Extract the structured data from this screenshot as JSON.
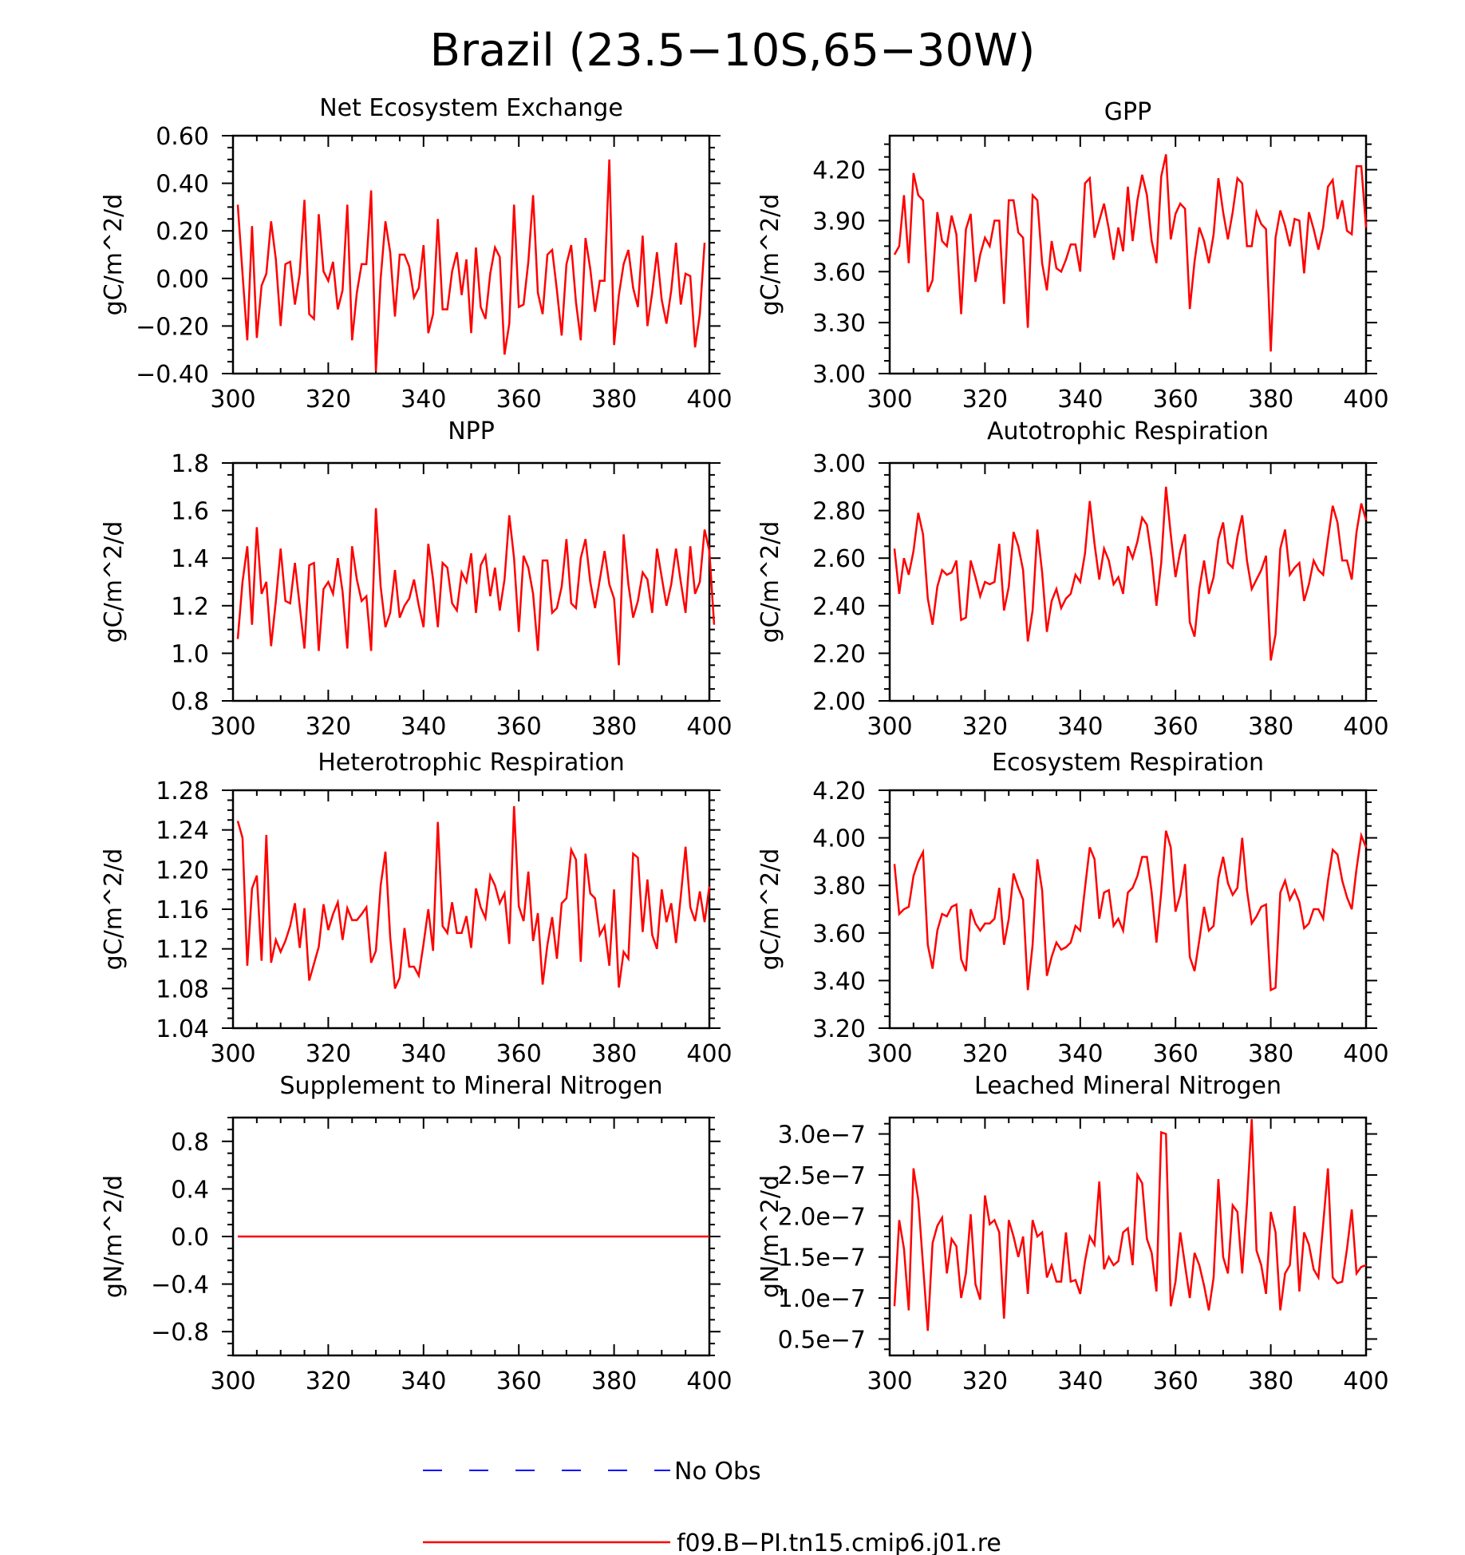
{
  "title": "Brazil (23.5−10S,65−30W)",
  "line_color": "#ff0000",
  "obs_color": "#0000ff",
  "legend": {
    "obs_label": "No Obs",
    "model_label": "f09.B−PI.tn15.cmip6.j01.re"
  },
  "x_ticks": [
    "300",
    "320",
    "340",
    "360",
    "380",
    "400"
  ],
  "chart_data": [
    {
      "type": "line",
      "title": "Net Ecosystem Exchange",
      "ylabel": "gC/m^2/d",
      "xlim": [
        300,
        400
      ],
      "ylim": [
        -0.4,
        0.6
      ],
      "yticks": [
        -0.4,
        -0.2,
        0.0,
        0.2,
        0.4,
        0.6
      ],
      "ytick_labels": [
        "−0.40",
        "−0.20",
        "0.00",
        "0.20",
        "0.40",
        "0.60"
      ],
      "x_start": 301,
      "series": [
        {
          "values": [
            0.31,
            0.02,
            -0.26,
            0.22,
            -0.25,
            -0.03,
            0.02,
            0.24,
            0.08,
            -0.2,
            0.06,
            0.07,
            -0.11,
            0.02,
            0.33,
            -0.15,
            -0.17,
            0.27,
            0.03,
            -0.01,
            0.07,
            -0.13,
            -0.05,
            0.31,
            -0.26,
            -0.06,
            0.06,
            0.06,
            0.37,
            -0.39,
            0.0,
            0.24,
            0.11,
            -0.16,
            0.1,
            0.1,
            0.05,
            -0.08,
            -0.04,
            0.14,
            -0.23,
            -0.15,
            0.25,
            -0.13,
            -0.13,
            0.03,
            0.11,
            -0.07,
            0.08,
            -0.23,
            0.13,
            -0.12,
            -0.17,
            0.02,
            0.13,
            0.09,
            -0.32,
            -0.19,
            0.31,
            -0.12,
            -0.11,
            0.07,
            0.35,
            -0.06,
            -0.15,
            0.1,
            0.12,
            -0.05,
            -0.24,
            0.06,
            0.14,
            -0.1,
            -0.26,
            0.17,
            0.04,
            -0.14,
            -0.01,
            -0.01,
            0.5,
            -0.28,
            -0.07,
            0.06,
            0.12,
            -0.04,
            -0.12,
            0.18,
            -0.2,
            -0.06,
            0.11,
            -0.09,
            -0.19,
            -0.05,
            0.15,
            -0.11,
            0.02,
            0.01,
            -0.29,
            -0.15,
            0.15
          ]
        }
      ]
    },
    {
      "type": "line",
      "title": "GPP",
      "ylabel": "gC/m^2/d",
      "xlim": [
        300,
        400
      ],
      "ylim": [
        3.0,
        4.4
      ],
      "yticks": [
        3.0,
        3.3,
        3.6,
        3.9,
        4.2
      ],
      "ytick_labels": [
        "3.00",
        "3.30",
        "3.60",
        "3.90",
        "4.20"
      ],
      "x_start": 301,
      "series": [
        {
          "values": [
            3.7,
            3.75,
            4.05,
            3.65,
            4.18,
            4.05,
            4.02,
            3.48,
            3.55,
            3.95,
            3.78,
            3.75,
            3.93,
            3.82,
            3.35,
            3.85,
            3.94,
            3.54,
            3.7,
            3.8,
            3.75,
            3.9,
            3.9,
            3.41,
            4.02,
            4.02,
            3.83,
            3.8,
            3.27,
            4.05,
            4.02,
            3.65,
            3.49,
            3.78,
            3.62,
            3.6,
            3.67,
            3.76,
            3.76,
            3.6,
            4.12,
            4.15,
            3.8,
            3.9,
            4.0,
            3.85,
            3.67,
            3.86,
            3.72,
            4.1,
            3.78,
            4.02,
            4.17,
            4.05,
            3.78,
            3.65,
            4.16,
            4.29,
            3.79,
            3.94,
            4.0,
            3.97,
            3.38,
            3.66,
            3.86,
            3.78,
            3.65,
            3.82,
            4.15,
            3.95,
            3.79,
            3.95,
            4.15,
            4.12,
            3.75,
            3.75,
            3.95,
            3.88,
            3.85,
            3.13,
            3.8,
            3.96,
            3.87,
            3.75,
            3.91,
            3.9,
            3.59,
            3.95,
            3.85,
            3.73,
            3.86,
            4.1,
            4.14,
            3.91,
            4.02,
            3.84,
            3.82,
            4.22,
            4.22,
            3.86
          ]
        }
      ]
    },
    {
      "type": "line",
      "title": "NPP",
      "ylabel": "gC/m^2/d",
      "xlim": [
        300,
        400
      ],
      "ylim": [
        0.8,
        1.8
      ],
      "yticks": [
        0.8,
        1.0,
        1.2,
        1.4,
        1.6,
        1.8
      ],
      "ytick_labels": [
        "0.8",
        "1.0",
        "1.2",
        "1.4",
        "1.6",
        "1.8"
      ],
      "x_start": 301,
      "series": [
        {
          "values": [
            1.06,
            1.3,
            1.45,
            1.12,
            1.53,
            1.25,
            1.3,
            1.03,
            1.22,
            1.44,
            1.22,
            1.21,
            1.38,
            1.2,
            1.02,
            1.37,
            1.38,
            1.01,
            1.27,
            1.3,
            1.25,
            1.4,
            1.26,
            1.02,
            1.45,
            1.31,
            1.22,
            1.24,
            1.01,
            1.61,
            1.28,
            1.11,
            1.17,
            1.35,
            1.15,
            1.2,
            1.23,
            1.31,
            1.2,
            1.11,
            1.46,
            1.31,
            1.11,
            1.38,
            1.36,
            1.21,
            1.18,
            1.34,
            1.3,
            1.42,
            1.17,
            1.37,
            1.41,
            1.24,
            1.36,
            1.18,
            1.31,
            1.58,
            1.4,
            1.09,
            1.41,
            1.36,
            1.25,
            1.01,
            1.39,
            1.39,
            1.17,
            1.19,
            1.28,
            1.48,
            1.21,
            1.19,
            1.4,
            1.48,
            1.3,
            1.19,
            1.31,
            1.43,
            1.29,
            1.23,
            0.95,
            1.5,
            1.29,
            1.15,
            1.22,
            1.34,
            1.31,
            1.17,
            1.44,
            1.32,
            1.2,
            1.29,
            1.44,
            1.3,
            1.17,
            1.45,
            1.25,
            1.3,
            1.52,
            1.43,
            1.12
          ]
        }
      ]
    },
    {
      "type": "line",
      "title": "Autotrophic Respiration",
      "ylabel": "gC/m^2/d",
      "xlim": [
        300,
        400
      ],
      "ylim": [
        2.0,
        3.0
      ],
      "yticks": [
        2.0,
        2.2,
        2.4,
        2.6,
        2.8,
        3.0
      ],
      "ytick_labels": [
        "2.00",
        "2.20",
        "2.40",
        "2.60",
        "2.80",
        "3.00"
      ],
      "x_start": 301,
      "series": [
        {
          "values": [
            2.64,
            2.45,
            2.6,
            2.53,
            2.63,
            2.79,
            2.7,
            2.43,
            2.32,
            2.48,
            2.55,
            2.53,
            2.54,
            2.59,
            2.34,
            2.35,
            2.59,
            2.52,
            2.44,
            2.5,
            2.49,
            2.5,
            2.66,
            2.38,
            2.48,
            2.71,
            2.65,
            2.55,
            2.25,
            2.38,
            2.72,
            2.54,
            2.29,
            2.42,
            2.47,
            2.39,
            2.43,
            2.45,
            2.53,
            2.5,
            2.62,
            2.84,
            2.66,
            2.51,
            2.64,
            2.59,
            2.49,
            2.52,
            2.45,
            2.65,
            2.6,
            2.67,
            2.77,
            2.74,
            2.6,
            2.4,
            2.58,
            2.9,
            2.7,
            2.52,
            2.63,
            2.7,
            2.33,
            2.27,
            2.47,
            2.59,
            2.45,
            2.52,
            2.68,
            2.75,
            2.58,
            2.56,
            2.69,
            2.78,
            2.59,
            2.47,
            2.51,
            2.55,
            2.61,
            2.17,
            2.28,
            2.64,
            2.72,
            2.53,
            2.56,
            2.58,
            2.42,
            2.49,
            2.59,
            2.55,
            2.53,
            2.68,
            2.82,
            2.75,
            2.59,
            2.59,
            2.51,
            2.71,
            2.83,
            2.76
          ]
        }
      ]
    },
    {
      "type": "line",
      "title": "Heterotrophic Respiration",
      "ylabel": "gC/m^2/d",
      "xlim": [
        300,
        400
      ],
      "ylim": [
        1.04,
        1.28
      ],
      "yticks": [
        1.04,
        1.08,
        1.12,
        1.16,
        1.2,
        1.24,
        1.28
      ],
      "ytick_labels": [
        "1.04",
        "1.08",
        "1.12",
        "1.16",
        "1.20",
        "1.24",
        "1.28"
      ],
      "x_start": 301,
      "series": [
        {
          "values": [
            1.249,
            1.232,
            1.103,
            1.181,
            1.194,
            1.108,
            1.235,
            1.106,
            1.129,
            1.117,
            1.128,
            1.143,
            1.166,
            1.121,
            1.161,
            1.088,
            1.105,
            1.122,
            1.165,
            1.139,
            1.155,
            1.167,
            1.129,
            1.161,
            1.149,
            1.149,
            1.155,
            1.162,
            1.106,
            1.118,
            1.184,
            1.218,
            1.132,
            1.08,
            1.091,
            1.141,
            1.102,
            1.102,
            1.093,
            1.125,
            1.16,
            1.118,
            1.248,
            1.143,
            1.136,
            1.167,
            1.136,
            1.136,
            1.153,
            1.121,
            1.181,
            1.162,
            1.151,
            1.194,
            1.184,
            1.166,
            1.176,
            1.125,
            1.264,
            1.163,
            1.148,
            1.198,
            1.128,
            1.156,
            1.084,
            1.124,
            1.152,
            1.11,
            1.166,
            1.171,
            1.22,
            1.21,
            1.107,
            1.216,
            1.176,
            1.171,
            1.134,
            1.143,
            1.103,
            1.18,
            1.081,
            1.117,
            1.11,
            1.216,
            1.212,
            1.137,
            1.19,
            1.134,
            1.12,
            1.18,
            1.147,
            1.166,
            1.126,
            1.173,
            1.223,
            1.162,
            1.148,
            1.178,
            1.147,
            1.183
          ]
        }
      ]
    },
    {
      "type": "line",
      "title": "Ecosystem Respiration",
      "ylabel": "gC/m^2/d",
      "xlim": [
        300,
        400
      ],
      "ylim": [
        3.2,
        4.2
      ],
      "yticks": [
        3.2,
        3.4,
        3.6,
        3.8,
        4.0,
        4.2
      ],
      "ytick_labels": [
        "3.20",
        "3.40",
        "3.60",
        "3.80",
        "4.00",
        "4.20"
      ],
      "x_start": 301,
      "series": [
        {
          "values": [
            3.89,
            3.68,
            3.7,
            3.71,
            3.84,
            3.9,
            3.94,
            3.55,
            3.45,
            3.61,
            3.68,
            3.67,
            3.71,
            3.72,
            3.49,
            3.44,
            3.7,
            3.64,
            3.61,
            3.64,
            3.64,
            3.66,
            3.79,
            3.55,
            3.66,
            3.85,
            3.79,
            3.74,
            3.36,
            3.55,
            3.91,
            3.78,
            3.42,
            3.5,
            3.56,
            3.53,
            3.54,
            3.56,
            3.63,
            3.61,
            3.79,
            3.96,
            3.91,
            3.66,
            3.77,
            3.78,
            3.63,
            3.66,
            3.61,
            3.77,
            3.79,
            3.84,
            3.92,
            3.92,
            3.77,
            3.56,
            3.77,
            4.03,
            3.96,
            3.69,
            3.76,
            3.89,
            3.5,
            3.44,
            3.57,
            3.71,
            3.61,
            3.63,
            3.83,
            3.92,
            3.81,
            3.76,
            3.79,
            4.0,
            3.78,
            3.64,
            3.67,
            3.71,
            3.72,
            3.36,
            3.37,
            3.77,
            3.82,
            3.74,
            3.78,
            3.73,
            3.62,
            3.64,
            3.7,
            3.7,
            3.66,
            3.82,
            3.95,
            3.93,
            3.82,
            3.75,
            3.7,
            3.87,
            4.01,
            3.96
          ]
        }
      ]
    },
    {
      "type": "line",
      "title": "Supplement to Mineral Nitrogen",
      "ylabel": "gN/m^2/d",
      "xlim": [
        300,
        400
      ],
      "ylim": [
        -1.0,
        1.0
      ],
      "yticks": [
        -0.8,
        -0.4,
        0.0,
        0.4,
        0.8
      ],
      "ytick_labels": [
        "−0.8",
        "−0.4",
        "0.0",
        "0.4",
        "0.8"
      ],
      "x_start": 301,
      "series": [
        {
          "values": [
            0,
            0,
            0,
            0,
            0,
            0,
            0,
            0,
            0,
            0,
            0,
            0,
            0,
            0,
            0,
            0,
            0,
            0,
            0,
            0,
            0,
            0,
            0,
            0,
            0,
            0,
            0,
            0,
            0,
            0,
            0,
            0,
            0,
            0,
            0,
            0,
            0,
            0,
            0,
            0,
            0,
            0,
            0,
            0,
            0,
            0,
            0,
            0,
            0,
            0,
            0,
            0,
            0,
            0,
            0,
            0,
            0,
            0,
            0,
            0,
            0,
            0,
            0,
            0,
            0,
            0,
            0,
            0,
            0,
            0,
            0,
            0,
            0,
            0,
            0,
            0,
            0,
            0,
            0,
            0,
            0,
            0,
            0,
            0,
            0,
            0,
            0,
            0,
            0,
            0,
            0,
            0,
            0,
            0,
            0,
            0,
            0,
            0,
            0,
            0
          ]
        }
      ]
    },
    {
      "type": "line",
      "title": "Leached Mineral Nitrogen",
      "ylabel": "gN/m^2/d",
      "xlim": [
        300,
        400
      ],
      "ylim": [
        3e-08,
        3.2e-07
      ],
      "yticks": [
        5e-08,
        1e-07,
        1.5e-07,
        2e-07,
        2.5e-07,
        3e-07
      ],
      "ytick_labels": [
        "0.5e−7",
        "1.0e−7",
        "1.5e−7",
        "2.0e−7",
        "2.5e−7",
        "3.0e−7"
      ],
      "x_start": 301,
      "series": [
        {
          "values": [
            9e-08,
            1.95e-07,
            1.6e-07,
            8.5e-08,
            2.58e-07,
            2.2e-07,
            1.4e-07,
            6e-08,
            1.67e-07,
            1.88e-07,
            1.98e-07,
            1.3e-07,
            1.72e-07,
            1.63e-07,
            1e-07,
            1.3e-07,
            2.02e-07,
            1.17e-07,
            9.8e-08,
            2.25e-07,
            1.9e-07,
            1.95e-07,
            1.8e-07,
            7.5e-08,
            1.95e-07,
            1.75e-07,
            1.5e-07,
            1.75e-07,
            1.05e-07,
            1.95e-07,
            1.75e-07,
            1.8e-07,
            1.25e-07,
            1.4e-07,
            1.2e-07,
            1.2e-07,
            1.8e-07,
            1.2e-07,
            1.22e-07,
            1.05e-07,
            1.45e-07,
            1.75e-07,
            1.65e-07,
            2.42e-07,
            1.35e-07,
            1.5e-07,
            1.4e-07,
            1.45e-07,
            1.8e-07,
            1.85e-07,
            1.4e-07,
            2.5e-07,
            2.4e-07,
            1.72e-07,
            1.55e-07,
            1.08e-07,
            3.02e-07,
            3e-07,
            9e-08,
            1.2e-07,
            1.8e-07,
            1.4e-07,
            1e-07,
            1.55e-07,
            1.4e-07,
            1.15e-07,
            8.5e-08,
            1.25e-07,
            2.45e-07,
            1.5e-07,
            1.3e-07,
            2.13e-07,
            2.05e-07,
            1.3e-07,
            2.15e-07,
            3.18e-07,
            1.58e-07,
            1.4e-07,
            1.05e-07,
            2.05e-07,
            1.8e-07,
            8.5e-08,
            1.3e-07,
            1.4e-07,
            2.12e-07,
            1.08e-07,
            1.8e-07,
            1.65e-07,
            1.35e-07,
            1.25e-07,
            1.9e-07,
            2.58e-07,
            1.25e-07,
            1.18e-07,
            1.2e-07,
            1.6e-07,
            2.08e-07,
            1.3e-07,
            1.38e-07,
            1.4e-07
          ]
        }
      ]
    }
  ]
}
